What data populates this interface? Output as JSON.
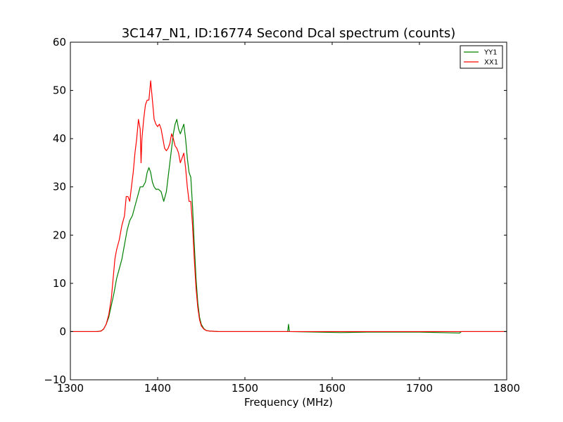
{
  "chart_data": {
    "type": "line",
    "title": "3C147_N1, ID:16774 Second Dcal spectrum (counts)",
    "xlabel": "Frequency (MHz)",
    "ylabel": "",
    "xlim": [
      1300,
      1800
    ],
    "ylim": [
      -10,
      60
    ],
    "xticks": [
      1300,
      1400,
      1500,
      1600,
      1700,
      1800
    ],
    "yticks": [
      -10,
      0,
      10,
      20,
      30,
      40,
      50,
      60
    ],
    "grid": false,
    "legend_position": "top-right",
    "series": [
      {
        "name": "YY1",
        "color": "#008000",
        "points": [
          [
            1300,
            0
          ],
          [
            1330,
            0
          ],
          [
            1335,
            0.1
          ],
          [
            1338,
            0.5
          ],
          [
            1341,
            1.5
          ],
          [
            1344,
            3
          ],
          [
            1347,
            5.5
          ],
          [
            1350,
            8
          ],
          [
            1353,
            11
          ],
          [
            1356,
            13
          ],
          [
            1359,
            15
          ],
          [
            1362,
            18
          ],
          [
            1365,
            21
          ],
          [
            1368,
            23
          ],
          [
            1371,
            24
          ],
          [
            1374,
            26
          ],
          [
            1377,
            28
          ],
          [
            1380,
            30
          ],
          [
            1383,
            30
          ],
          [
            1386,
            31
          ],
          [
            1388,
            33
          ],
          [
            1390,
            34
          ],
          [
            1392,
            33
          ],
          [
            1394,
            31
          ],
          [
            1396,
            30
          ],
          [
            1398,
            29.5
          ],
          [
            1401,
            29.5
          ],
          [
            1404,
            29
          ],
          [
            1407,
            27
          ],
          [
            1410,
            29
          ],
          [
            1412,
            32
          ],
          [
            1414,
            35
          ],
          [
            1416,
            38
          ],
          [
            1418,
            41
          ],
          [
            1420,
            43
          ],
          [
            1422,
            44
          ],
          [
            1424,
            42
          ],
          [
            1426,
            41
          ],
          [
            1428,
            42
          ],
          [
            1430,
            43
          ],
          [
            1432,
            40
          ],
          [
            1434,
            36
          ],
          [
            1436,
            33
          ],
          [
            1438,
            32
          ],
          [
            1440,
            26
          ],
          [
            1442,
            18
          ],
          [
            1444,
            11
          ],
          [
            1446,
            6
          ],
          [
            1448,
            3
          ],
          [
            1450,
            1.5
          ],
          [
            1453,
            0.6
          ],
          [
            1456,
            0.2
          ],
          [
            1460,
            0.1
          ],
          [
            1470,
            0
          ],
          [
            1549,
            0
          ],
          [
            1550,
            1.5
          ],
          [
            1551,
            0
          ],
          [
            1610,
            -0.2
          ],
          [
            1640,
            -0.1
          ],
          [
            1700,
            -0.1
          ],
          [
            1746,
            -0.3
          ],
          [
            1748,
            0
          ],
          [
            1800,
            0
          ]
        ]
      },
      {
        "name": "XX1",
        "color": "#ff0000",
        "points": [
          [
            1300,
            0
          ],
          [
            1330,
            0
          ],
          [
            1335,
            0.1
          ],
          [
            1338,
            0.5
          ],
          [
            1341,
            1.5
          ],
          [
            1344,
            3.5
          ],
          [
            1347,
            7
          ],
          [
            1349,
            11
          ],
          [
            1351,
            15
          ],
          [
            1353,
            17
          ],
          [
            1356,
            19
          ],
          [
            1359,
            22
          ],
          [
            1362,
            24
          ],
          [
            1364,
            28
          ],
          [
            1366,
            28
          ],
          [
            1368,
            27
          ],
          [
            1370,
            30
          ],
          [
            1372,
            33
          ],
          [
            1374,
            37
          ],
          [
            1376,
            40
          ],
          [
            1378,
            44
          ],
          [
            1380,
            42
          ],
          [
            1381,
            35
          ],
          [
            1382,
            40
          ],
          [
            1384,
            44
          ],
          [
            1386,
            47
          ],
          [
            1388,
            48
          ],
          [
            1390,
            48
          ],
          [
            1392,
            52
          ],
          [
            1394,
            48
          ],
          [
            1396,
            44
          ],
          [
            1398,
            43
          ],
          [
            1400,
            42.5
          ],
          [
            1402,
            43
          ],
          [
            1404,
            42
          ],
          [
            1406,
            40
          ],
          [
            1408,
            38
          ],
          [
            1410,
            37.5
          ],
          [
            1412,
            38
          ],
          [
            1414,
            39
          ],
          [
            1416,
            41
          ],
          [
            1418,
            40
          ],
          [
            1420,
            38.5
          ],
          [
            1422,
            38
          ],
          [
            1424,
            37
          ],
          [
            1426,
            35
          ],
          [
            1428,
            36
          ],
          [
            1430,
            37
          ],
          [
            1432,
            34
          ],
          [
            1434,
            30
          ],
          [
            1436,
            27
          ],
          [
            1438,
            27
          ],
          [
            1440,
            22
          ],
          [
            1442,
            15
          ],
          [
            1444,
            9
          ],
          [
            1446,
            5
          ],
          [
            1448,
            2.5
          ],
          [
            1450,
            1.2
          ],
          [
            1453,
            0.5
          ],
          [
            1456,
            0.2
          ],
          [
            1460,
            0.1
          ],
          [
            1470,
            0
          ],
          [
            1800,
            0
          ]
        ]
      }
    ]
  }
}
